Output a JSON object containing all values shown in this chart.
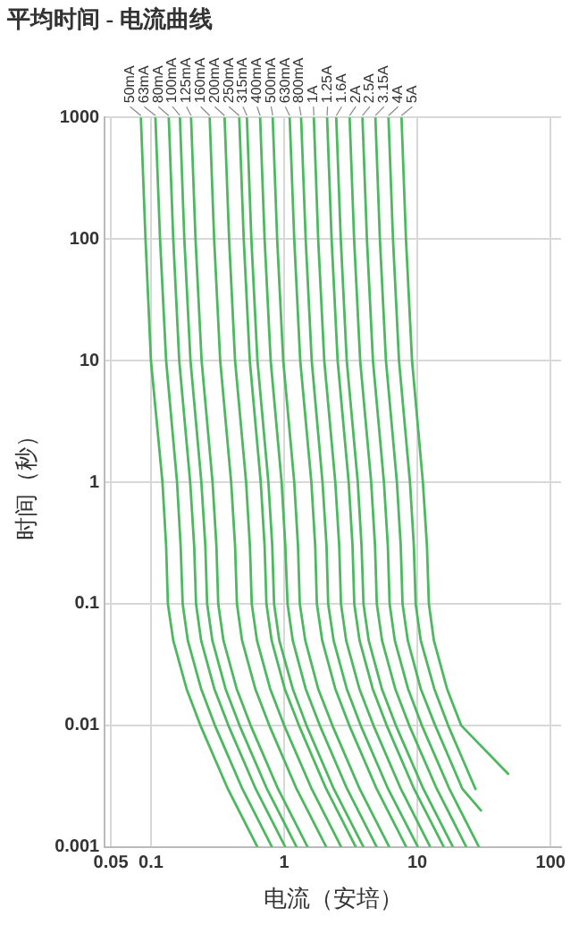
{
  "chart_data": {
    "type": "line",
    "title": "平均时间 - 电流曲线",
    "xlabel": "电流（安培）",
    "ylabel": "时间（秒）",
    "log": "xy",
    "xlim": [
      0.045,
      120
    ],
    "ylim": [
      0.001,
      1000
    ],
    "xticks": [
      0.05,
      0.1,
      1,
      10,
      100
    ],
    "yticks": [
      1000,
      100,
      10,
      1,
      0.1,
      0.01,
      0.001
    ],
    "grid": true,
    "legend": false,
    "marker": "none",
    "line_style": "solid",
    "series": [
      {
        "name": "50mA",
        "color": "#4cb860",
        "x": [
          0.084,
          0.091,
          0.1,
          0.122,
          0.13,
          0.134,
          0.147,
          0.185,
          0.235,
          0.378,
          0.63
        ],
        "values": [
          1000,
          100,
          10,
          1,
          0.3,
          0.1,
          0.05,
          0.02,
          0.01,
          0.003,
          0.001
        ]
      },
      {
        "name": "63mA",
        "color": "#4cb860",
        "x": [
          0.108,
          0.117,
          0.13,
          0.157,
          0.167,
          0.173,
          0.189,
          0.238,
          0.302,
          0.486,
          0.81
        ],
        "values": [
          1000,
          100,
          10,
          1,
          0.3,
          0.1,
          0.05,
          0.02,
          0.01,
          0.003,
          0.001
        ]
      },
      {
        "name": "80mA",
        "color": "#4cb860",
        "x": [
          0.136,
          0.147,
          0.163,
          0.197,
          0.211,
          0.218,
          0.238,
          0.299,
          0.381,
          0.612,
          1.02
        ],
        "values": [
          1000,
          100,
          10,
          1,
          0.3,
          0.1,
          0.05,
          0.02,
          0.01,
          0.003,
          0.001
        ]
      },
      {
        "name": "100mA",
        "color": "#4cb860",
        "x": [
          0.165,
          0.178,
          0.198,
          0.239,
          0.256,
          0.264,
          0.289,
          0.363,
          0.462,
          0.743,
          1.24
        ],
        "values": [
          1000,
          100,
          10,
          1,
          0.3,
          0.1,
          0.05,
          0.02,
          0.01,
          0.003,
          0.001
        ]
      },
      {
        "name": "125mA",
        "color": "#4cb860",
        "x": [
          0.2,
          0.216,
          0.24,
          0.29,
          0.31,
          0.32,
          0.35,
          0.44,
          0.56,
          0.9,
          1.5
        ],
        "values": [
          1000,
          100,
          10,
          1,
          0.3,
          0.1,
          0.05,
          0.02,
          0.01,
          0.003,
          0.001
        ]
      },
      {
        "name": "160mA",
        "color": "#4cb860",
        "x": [
          0.276,
          0.298,
          0.331,
          0.4,
          0.428,
          0.442,
          0.483,
          0.607,
          0.773,
          1.24,
          2.07
        ],
        "values": [
          1000,
          100,
          10,
          1,
          0.3,
          0.1,
          0.05,
          0.02,
          0.01,
          0.003,
          0.001
        ]
      },
      {
        "name": "200mA",
        "color": "#4cb860",
        "x": [
          0.357,
          0.386,
          0.428,
          0.518,
          0.553,
          0.571,
          0.625,
          0.785,
          1.0,
          1.61,
          2.68
        ],
        "values": [
          1000,
          100,
          10,
          1,
          0.3,
          0.1,
          0.05,
          0.02,
          0.01,
          0.003,
          0.001
        ]
      },
      {
        "name": "250mA",
        "color": "#4cb860",
        "x": [
          0.46,
          0.497,
          0.552,
          0.667,
          0.713,
          0.736,
          0.805,
          1.01,
          1.29,
          2.07,
          3.45
        ],
        "values": [
          1000,
          100,
          10,
          1,
          0.3,
          0.1,
          0.05,
          0.02,
          0.01,
          0.003,
          0.001
        ]
      },
      {
        "name": "315mA",
        "color": "#4cb860",
        "x": [
          0.525,
          0.567,
          0.63,
          0.761,
          0.814,
          0.84,
          0.919,
          1.16,
          1.47,
          2.36,
          3.94
        ],
        "values": [
          1000,
          100,
          10,
          1,
          0.3,
          0.1,
          0.05,
          0.02,
          0.01,
          0.003,
          0.001
        ]
      },
      {
        "name": "400mA",
        "color": "#4cb860",
        "x": [
          0.66,
          0.713,
          0.792,
          0.957,
          1.02,
          1.06,
          1.16,
          1.45,
          1.85,
          2.97,
          4.95
        ],
        "values": [
          1000,
          100,
          10,
          1,
          0.3,
          0.1,
          0.05,
          0.02,
          0.01,
          0.003,
          0.001
        ]
      },
      {
        "name": "500mA",
        "color": "#4cb860",
        "x": [
          0.82,
          0.886,
          0.984,
          1.19,
          1.27,
          1.31,
          1.44,
          1.8,
          2.3,
          3.69,
          6.15
        ],
        "values": [
          1000,
          100,
          10,
          1,
          0.3,
          0.1,
          0.05,
          0.02,
          0.01,
          0.003,
          0.001
        ]
      },
      {
        "name": "630mA",
        "color": "#4cb860",
        "x": [
          1.1,
          1.19,
          1.32,
          1.6,
          1.71,
          1.76,
          1.93,
          2.42,
          3.08,
          4.95,
          8.25
        ],
        "values": [
          1000,
          100,
          10,
          1,
          0.3,
          0.1,
          0.05,
          0.02,
          0.01,
          0.003,
          0.001
        ]
      },
      {
        "name": "800mA",
        "color": "#4cb860",
        "x": [
          1.34,
          1.45,
          1.61,
          1.94,
          2.08,
          2.14,
          2.35,
          2.95,
          3.75,
          6.03,
          10.1
        ],
        "values": [
          1000,
          100,
          10,
          1,
          0.3,
          0.1,
          0.05,
          0.02,
          0.01,
          0.003,
          0.001
        ]
      },
      {
        "name": "1A",
        "color": "#4cb860",
        "x": [
          1.67,
          1.8,
          2.0,
          2.42,
          2.59,
          2.67,
          2.92,
          3.67,
          4.68,
          7.52,
          12.5
        ],
        "values": [
          1000,
          100,
          10,
          1,
          0.3,
          0.1,
          0.05,
          0.02,
          0.01,
          0.003,
          0.001
        ]
      },
      {
        "name": "1.25A",
        "color": "#4cb860",
        "x": [
          2.1,
          2.27,
          2.52,
          3.05,
          3.26,
          3.36,
          3.68,
          4.62,
          5.88,
          9.45,
          15.8
        ],
        "values": [
          1000,
          100,
          10,
          1,
          0.3,
          0.1,
          0.05,
          0.02,
          0.01,
          0.003,
          0.001
        ]
      },
      {
        "name": "1.6A",
        "color": "#4cb860",
        "x": [
          2.46,
          2.66,
          2.95,
          3.57,
          3.81,
          3.94,
          4.31,
          5.41,
          6.89,
          11.1,
          18.5
        ],
        "values": [
          1000,
          100,
          10,
          1,
          0.3,
          0.1,
          0.05,
          0.02,
          0.01,
          0.003,
          0.001
        ]
      },
      {
        "name": "2A",
        "color": "#4cb860",
        "x": [
          3.1,
          3.35,
          3.72,
          4.5,
          4.81,
          4.96,
          5.43,
          6.82,
          8.68,
          14,
          23.3
        ],
        "values": [
          1000,
          100,
          10,
          1,
          0.3,
          0.1,
          0.05,
          0.02,
          0.01,
          0.003,
          0.001
        ]
      },
      {
        "name": "2.5A",
        "color": "#4cb860",
        "x": [
          3.87,
          4.18,
          4.64,
          5.61,
          6.0,
          6.19,
          6.77,
          8.51,
          10.8,
          17.4,
          29
        ],
        "values": [
          1000,
          100,
          10,
          1,
          0.3,
          0.1,
          0.05,
          0.02,
          0.01,
          0.003,
          0.001
        ]
      },
      {
        "name": "3.15A",
        "color": "#4cb860",
        "x": [
          4.84,
          5.23,
          5.81,
          7.02,
          7.5,
          7.74,
          8.47,
          10.6,
          13.6,
          21.8,
          30
        ],
        "values": [
          1000,
          100,
          10,
          1,
          0.3,
          0.1,
          0.05,
          0.02,
          0.01,
          0.003,
          0.002
        ]
      },
      {
        "name": "4A",
        "color": "#4cb860",
        "x": [
          6.07,
          6.56,
          7.28,
          8.8,
          9.41,
          9.71,
          10.6,
          13.4,
          17,
          27.3
        ],
        "values": [
          1000,
          100,
          10,
          1,
          0.3,
          0.1,
          0.05,
          0.02,
          0.01,
          0.003
        ]
      },
      {
        "name": "5A",
        "color": "#4cb860",
        "x": [
          7.6,
          8.21,
          9.12,
          11,
          11.8,
          12.2,
          13.3,
          16.7,
          21.3,
          48
        ],
        "values": [
          1000,
          100,
          10,
          1,
          0.3,
          0.1,
          0.05,
          0.02,
          0.01,
          0.004
        ]
      }
    ]
  }
}
